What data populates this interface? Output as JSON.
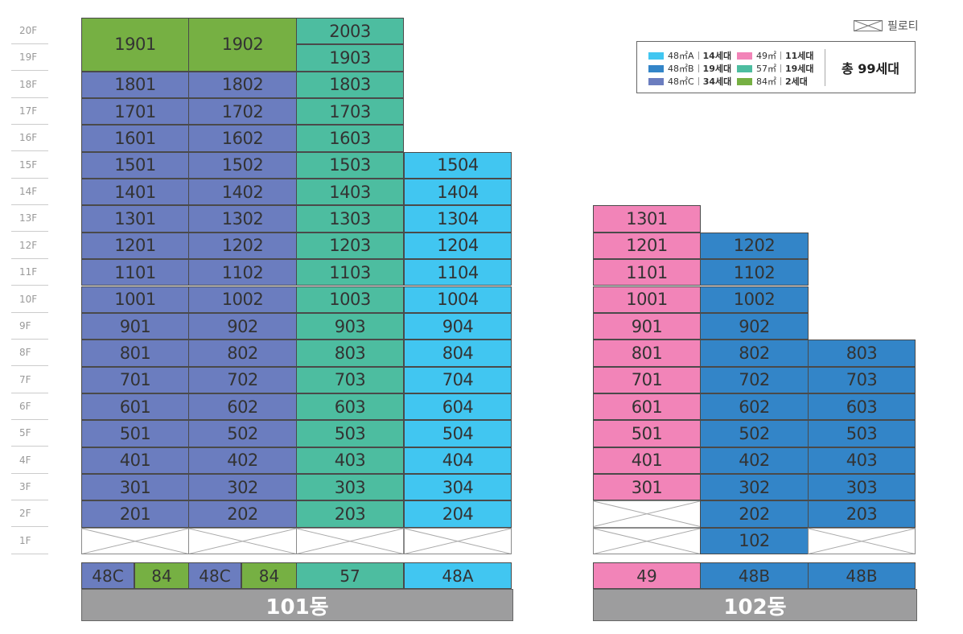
{
  "floors": [
    "20F",
    "19F",
    "18F",
    "17F",
    "16F",
    "15F",
    "14F",
    "13F",
    "12F",
    "11F",
    "10F",
    "9F",
    "8F",
    "7F",
    "6F",
    "5F",
    "4F",
    "3F",
    "2F",
    "1F"
  ],
  "colors": {
    "48A": "#41c6f1",
    "48B": "#3385c8",
    "48C": "#6b7dbf",
    "49": "#f284b8",
    "57": "#4dbda0",
    "84": "#76b043",
    "piloti": "#ffffff"
  },
  "piloti_key": {
    "label": "필로티"
  },
  "legend": {
    "items": [
      {
        "type": "48A",
        "area": "48㎡A",
        "count": "14세대"
      },
      {
        "type": "48B",
        "area": "48㎡B",
        "count": "19세대"
      },
      {
        "type": "48C",
        "area": "48㎡C",
        "count": "34세대"
      },
      {
        "type": "49",
        "area": "49㎡",
        "count": "11세대"
      },
      {
        "type": "57",
        "area": "57㎡",
        "count": "19세대"
      },
      {
        "type": "84",
        "area": "84㎡",
        "count": "2세대"
      }
    ],
    "total": "총 99세대"
  },
  "buildings": [
    {
      "name": "101동",
      "columns": [
        {
          "type_labels": [
            {
              "text": "48C",
              "type": "48C"
            },
            {
              "text": "84",
              "type": "84"
            }
          ],
          "units": [
            {
              "label": "1901",
              "type": "84",
              "span": 2
            },
            {
              "label": "1801",
              "type": "48C"
            },
            {
              "label": "1701",
              "type": "48C"
            },
            {
              "label": "1601",
              "type": "48C"
            },
            {
              "label": "1501",
              "type": "48C"
            },
            {
              "label": "1401",
              "type": "48C"
            },
            {
              "label": "1301",
              "type": "48C"
            },
            {
              "label": "1201",
              "type": "48C"
            },
            {
              "label": "1101",
              "type": "48C"
            },
            {
              "label": "1001",
              "type": "48C"
            },
            {
              "label": "901",
              "type": "48C"
            },
            {
              "label": "801",
              "type": "48C"
            },
            {
              "label": "701",
              "type": "48C"
            },
            {
              "label": "601",
              "type": "48C"
            },
            {
              "label": "501",
              "type": "48C"
            },
            {
              "label": "401",
              "type": "48C"
            },
            {
              "label": "301",
              "type": "48C"
            },
            {
              "label": "201",
              "type": "48C"
            },
            {
              "label": "",
              "type": "piloti"
            }
          ]
        },
        {
          "type_labels": [
            {
              "text": "48C",
              "type": "48C"
            },
            {
              "text": "84",
              "type": "84"
            }
          ],
          "units": [
            {
              "label": "1902",
              "type": "84",
              "span": 2
            },
            {
              "label": "1802",
              "type": "48C"
            },
            {
              "label": "1702",
              "type": "48C"
            },
            {
              "label": "1602",
              "type": "48C"
            },
            {
              "label": "1502",
              "type": "48C"
            },
            {
              "label": "1402",
              "type": "48C"
            },
            {
              "label": "1302",
              "type": "48C"
            },
            {
              "label": "1202",
              "type": "48C"
            },
            {
              "label": "1102",
              "type": "48C"
            },
            {
              "label": "1002",
              "type": "48C"
            },
            {
              "label": "902",
              "type": "48C"
            },
            {
              "label": "802",
              "type": "48C"
            },
            {
              "label": "702",
              "type": "48C"
            },
            {
              "label": "602",
              "type": "48C"
            },
            {
              "label": "502",
              "type": "48C"
            },
            {
              "label": "402",
              "type": "48C"
            },
            {
              "label": "302",
              "type": "48C"
            },
            {
              "label": "202",
              "type": "48C"
            },
            {
              "label": "",
              "type": "piloti"
            }
          ]
        },
        {
          "type_labels": [
            {
              "text": "57",
              "type": "57"
            }
          ],
          "units": [
            {
              "label": "2003",
              "type": "57"
            },
            {
              "label": "1903",
              "type": "57"
            },
            {
              "label": "1803",
              "type": "57"
            },
            {
              "label": "1703",
              "type": "57"
            },
            {
              "label": "1603",
              "type": "57"
            },
            {
              "label": "1503",
              "type": "57"
            },
            {
              "label": "1403",
              "type": "57"
            },
            {
              "label": "1303",
              "type": "57"
            },
            {
              "label": "1203",
              "type": "57"
            },
            {
              "label": "1103",
              "type": "57"
            },
            {
              "label": "1003",
              "type": "57"
            },
            {
              "label": "903",
              "type": "57"
            },
            {
              "label": "803",
              "type": "57"
            },
            {
              "label": "703",
              "type": "57"
            },
            {
              "label": "603",
              "type": "57"
            },
            {
              "label": "503",
              "type": "57"
            },
            {
              "label": "403",
              "type": "57"
            },
            {
              "label": "303",
              "type": "57"
            },
            {
              "label": "203",
              "type": "57"
            },
            {
              "label": "",
              "type": "piloti"
            }
          ]
        },
        {
          "type_labels": [
            {
              "text": "48A",
              "type": "48A"
            }
          ],
          "units": [
            {
              "label": "1504",
              "type": "48A"
            },
            {
              "label": "1404",
              "type": "48A"
            },
            {
              "label": "1304",
              "type": "48A"
            },
            {
              "label": "1204",
              "type": "48A"
            },
            {
              "label": "1104",
              "type": "48A"
            },
            {
              "label": "1004",
              "type": "48A"
            },
            {
              "label": "904",
              "type": "48A"
            },
            {
              "label": "804",
              "type": "48A"
            },
            {
              "label": "704",
              "type": "48A"
            },
            {
              "label": "604",
              "type": "48A"
            },
            {
              "label": "504",
              "type": "48A"
            },
            {
              "label": "404",
              "type": "48A"
            },
            {
              "label": "304",
              "type": "48A"
            },
            {
              "label": "204",
              "type": "48A"
            },
            {
              "label": "",
              "type": "piloti"
            }
          ]
        }
      ]
    },
    {
      "name": "102동",
      "columns": [
        {
          "type_labels": [
            {
              "text": "49",
              "type": "49"
            }
          ],
          "units": [
            {
              "label": "1301",
              "type": "49"
            },
            {
              "label": "1201",
              "type": "49"
            },
            {
              "label": "1101",
              "type": "49"
            },
            {
              "label": "1001",
              "type": "49"
            },
            {
              "label": "901",
              "type": "49"
            },
            {
              "label": "801",
              "type": "49"
            },
            {
              "label": "701",
              "type": "49"
            },
            {
              "label": "601",
              "type": "49"
            },
            {
              "label": "501",
              "type": "49"
            },
            {
              "label": "401",
              "type": "49"
            },
            {
              "label": "301",
              "type": "49"
            },
            {
              "label": "",
              "type": "piloti"
            },
            {
              "label": "",
              "type": "piloti"
            }
          ]
        },
        {
          "type_labels": [
            {
              "text": "48B",
              "type": "48B"
            }
          ],
          "units": [
            {
              "label": "1202",
              "type": "48B"
            },
            {
              "label": "1102",
              "type": "48B"
            },
            {
              "label": "1002",
              "type": "48B"
            },
            {
              "label": "902",
              "type": "48B"
            },
            {
              "label": "802",
              "type": "48B"
            },
            {
              "label": "702",
              "type": "48B"
            },
            {
              "label": "602",
              "type": "48B"
            },
            {
              "label": "502",
              "type": "48B"
            },
            {
              "label": "402",
              "type": "48B"
            },
            {
              "label": "302",
              "type": "48B"
            },
            {
              "label": "202",
              "type": "48B"
            },
            {
              "label": "102",
              "type": "48B"
            }
          ]
        },
        {
          "type_labels": [
            {
              "text": "48B",
              "type": "48B"
            }
          ],
          "units": [
            {
              "label": "803",
              "type": "48B"
            },
            {
              "label": "703",
              "type": "48B"
            },
            {
              "label": "603",
              "type": "48B"
            },
            {
              "label": "503",
              "type": "48B"
            },
            {
              "label": "403",
              "type": "48B"
            },
            {
              "label": "303",
              "type": "48B"
            },
            {
              "label": "203",
              "type": "48B"
            },
            {
              "label": "",
              "type": "piloti"
            }
          ]
        }
      ]
    }
  ]
}
